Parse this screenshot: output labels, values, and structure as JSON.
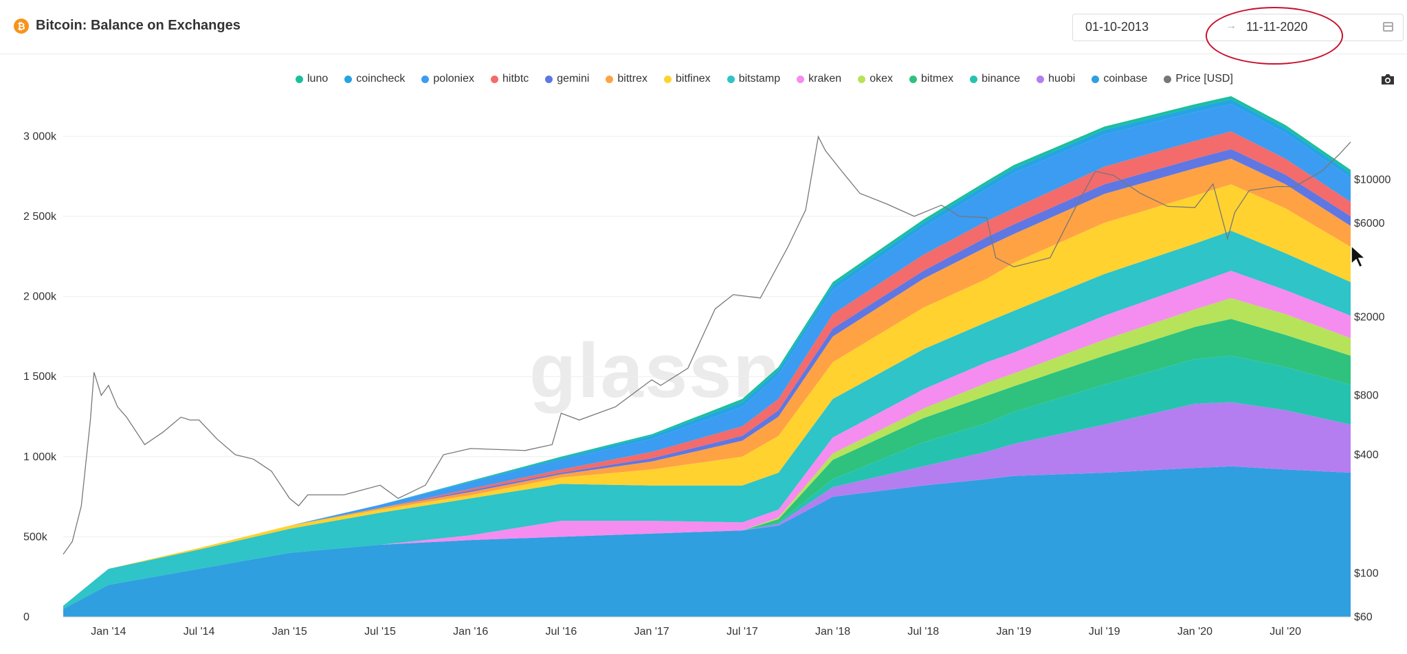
{
  "header": {
    "title": "Bitcoin: Balance on Exchanges",
    "date_start": "01-10-2013",
    "date_arrow": "→",
    "date_end": "11-11-2020"
  },
  "watermark": "glassnode",
  "colors": {
    "luno": "#1bbf9c",
    "coincheck": "#26a3e5",
    "poloniex": "#3b9cf1",
    "hitbtc": "#f36b6b",
    "gemini": "#5f77e2",
    "bittrex": "#ffa244",
    "bitfinex": "#ffd230",
    "bitstamp": "#2ec4c8",
    "kraken": "#f58cf0",
    "okex": "#b6e35a",
    "bitmex": "#2ec27e",
    "binance": "#26c2b0",
    "huobi": "#b47ef0",
    "coinbase": "#2f9fe0",
    "price": "#777777"
  },
  "chart_data": {
    "type": "area",
    "title": "Bitcoin: Balance on Exchanges",
    "stacked": true,
    "legend": [
      {
        "key": "luno",
        "label": "luno"
      },
      {
        "key": "coincheck",
        "label": "coincheck"
      },
      {
        "key": "poloniex",
        "label": "poloniex"
      },
      {
        "key": "hitbtc",
        "label": "hitbtc"
      },
      {
        "key": "gemini",
        "label": "gemini"
      },
      {
        "key": "bittrex",
        "label": "bittrex"
      },
      {
        "key": "bitfinex",
        "label": "bitfinex"
      },
      {
        "key": "bitstamp",
        "label": "bitstamp"
      },
      {
        "key": "kraken",
        "label": "kraken"
      },
      {
        "key": "okex",
        "label": "okex"
      },
      {
        "key": "bitmex",
        "label": "bitmex"
      },
      {
        "key": "binance",
        "label": "binance"
      },
      {
        "key": "huobi",
        "label": "huobi"
      },
      {
        "key": "coinbase",
        "label": "coinbase"
      },
      {
        "key": "price",
        "label": "Price [USD]"
      }
    ],
    "x": [
      2013.75,
      2014.0,
      2014.5,
      2015.0,
      2015.5,
      2016.0,
      2016.5,
      2017.0,
      2017.5,
      2017.7,
      2018.0,
      2018.5,
      2018.85,
      2019.0,
      2019.5,
      2020.0,
      2020.2,
      2020.5,
      2020.86
    ],
    "x_ticks": [
      {
        "value": 2014.0,
        "label": "Jan '14"
      },
      {
        "value": 2014.5,
        "label": "Jul '14"
      },
      {
        "value": 2015.0,
        "label": "Jan '15"
      },
      {
        "value": 2015.5,
        "label": "Jul '15"
      },
      {
        "value": 2016.0,
        "label": "Jan '16"
      },
      {
        "value": 2016.5,
        "label": "Jul '16"
      },
      {
        "value": 2017.0,
        "label": "Jan '17"
      },
      {
        "value": 2017.5,
        "label": "Jul '17"
      },
      {
        "value": 2018.0,
        "label": "Jan '18"
      },
      {
        "value": 2018.5,
        "label": "Jul '18"
      },
      {
        "value": 2019.0,
        "label": "Jan '19"
      },
      {
        "value": 2019.5,
        "label": "Jul '19"
      },
      {
        "value": 2020.0,
        "label": "Jan '20"
      },
      {
        "value": 2020.5,
        "label": "Jul '20"
      }
    ],
    "xlim": [
      2013.75,
      2020.86
    ],
    "ylim": [
      0,
      3100000
    ],
    "y_ticks": [
      {
        "value": 0,
        "label": "0"
      },
      {
        "value": 500000,
        "label": "500k"
      },
      {
        "value": 1000000,
        "label": "1 000k"
      },
      {
        "value": 1500000,
        "label": "1 500k"
      },
      {
        "value": 2000000,
        "label": "2 000k"
      },
      {
        "value": 2500000,
        "label": "2 500k"
      },
      {
        "value": 3000000,
        "label": "3 000k"
      }
    ],
    "y2_scale": "log",
    "y2lim": [
      60,
      20000
    ],
    "y2_ticks": [
      {
        "value": 60,
        "label": "$60"
      },
      {
        "value": 100,
        "label": "$100"
      },
      {
        "value": 400,
        "label": "$400"
      },
      {
        "value": 800,
        "label": "$800"
      },
      {
        "value": 2000,
        "label": "$2000"
      },
      {
        "value": 6000,
        "label": "$6000"
      },
      {
        "value": 10000,
        "label": "$10000"
      }
    ],
    "series": [
      {
        "name": "coinbase",
        "values": [
          50000,
          200000,
          300000,
          400000,
          450000,
          480000,
          500000,
          520000,
          540000,
          570000,
          750000,
          820000,
          860000,
          880000,
          900000,
          930000,
          940000,
          920000,
          900000
        ]
      },
      {
        "name": "huobi",
        "values": [
          0,
          0,
          0,
          0,
          0,
          0,
          0,
          0,
          0,
          10000,
          60000,
          120000,
          170000,
          200000,
          300000,
          400000,
          400000,
          370000,
          300000
        ]
      },
      {
        "name": "binance",
        "values": [
          0,
          0,
          0,
          0,
          0,
          0,
          0,
          0,
          0,
          10000,
          50000,
          150000,
          180000,
          200000,
          250000,
          280000,
          290000,
          270000,
          250000
        ]
      },
      {
        "name": "bitmex",
        "values": [
          0,
          0,
          0,
          0,
          0,
          0,
          0,
          0,
          0,
          20000,
          120000,
          150000,
          170000,
          160000,
          180000,
          200000,
          230000,
          200000,
          180000
        ]
      },
      {
        "name": "okex",
        "values": [
          0,
          0,
          0,
          0,
          0,
          0,
          0,
          0,
          0,
          10000,
          40000,
          60000,
          80000,
          80000,
          100000,
          110000,
          130000,
          130000,
          110000
        ]
      },
      {
        "name": "kraken",
        "values": [
          0,
          0,
          0,
          0,
          0,
          30000,
          100000,
          80000,
          50000,
          50000,
          100000,
          120000,
          130000,
          130000,
          150000,
          160000,
          170000,
          150000,
          140000
        ]
      },
      {
        "name": "bitstamp",
        "values": [
          20000,
          100000,
          120000,
          150000,
          200000,
          230000,
          230000,
          220000,
          230000,
          230000,
          240000,
          250000,
          250000,
          260000,
          260000,
          250000,
          250000,
          230000,
          210000
        ]
      },
      {
        "name": "bitfinex",
        "values": [
          0,
          0,
          10000,
          20000,
          20000,
          20000,
          40000,
          100000,
          180000,
          230000,
          230000,
          260000,
          270000,
          300000,
          320000,
          300000,
          290000,
          280000,
          220000
        ]
      },
      {
        "name": "bittrex",
        "values": [
          0,
          0,
          0,
          0,
          10000,
          20000,
          20000,
          50000,
          100000,
          120000,
          160000,
          180000,
          200000,
          180000,
          180000,
          170000,
          160000,
          150000,
          130000
        ]
      },
      {
        "name": "gemini",
        "values": [
          0,
          0,
          0,
          0,
          0,
          10000,
          10000,
          20000,
          30000,
          40000,
          50000,
          50000,
          60000,
          60000,
          60000,
          60000,
          60000,
          60000,
          60000
        ]
      },
      {
        "name": "hitbtc",
        "values": [
          0,
          0,
          0,
          0,
          0,
          10000,
          20000,
          40000,
          60000,
          70000,
          90000,
          100000,
          100000,
          100000,
          110000,
          110000,
          110000,
          100000,
          90000
        ]
      },
      {
        "name": "poloniex",
        "values": [
          0,
          0,
          0,
          0,
          20000,
          40000,
          60000,
          80000,
          120000,
          150000,
          150000,
          170000,
          200000,
          220000,
          200000,
          180000,
          170000,
          160000,
          150000
        ]
      },
      {
        "name": "coincheck",
        "values": [
          0,
          0,
          0,
          0,
          0,
          5000,
          10000,
          20000,
          30000,
          30000,
          30000,
          30000,
          30000,
          30000,
          30000,
          30000,
          30000,
          30000,
          30000
        ]
      },
      {
        "name": "luno",
        "values": [
          0,
          0,
          0,
          0,
          0,
          5000,
          10000,
          10000,
          20000,
          20000,
          20000,
          20000,
          20000,
          20000,
          20000,
          20000,
          20000,
          20000,
          20000
        ]
      }
    ],
    "price": {
      "name": "Price [USD]",
      "x": [
        2013.75,
        2013.8,
        2013.85,
        2013.9,
        2013.92,
        2013.96,
        2014.0,
        2014.05,
        2014.1,
        2014.2,
        2014.3,
        2014.4,
        2014.45,
        2014.5,
        2014.6,
        2014.7,
        2014.8,
        2014.9,
        2015.0,
        2015.05,
        2015.1,
        2015.3,
        2015.5,
        2015.6,
        2015.75,
        2015.85,
        2016.0,
        2016.3,
        2016.45,
        2016.5,
        2016.6,
        2016.8,
        2017.0,
        2017.05,
        2017.2,
        2017.35,
        2017.45,
        2017.6,
        2017.75,
        2017.85,
        2017.92,
        2017.96,
        2018.05,
        2018.15,
        2018.3,
        2018.45,
        2018.6,
        2018.7,
        2018.85,
        2018.9,
        2019.0,
        2019.2,
        2019.35,
        2019.45,
        2019.55,
        2019.7,
        2019.85,
        2020.0,
        2020.1,
        2020.18,
        2020.22,
        2020.3,
        2020.45,
        2020.55,
        2020.7,
        2020.8,
        2020.86
      ],
      "values": [
        125,
        145,
        220,
        600,
        1050,
        800,
        900,
        700,
        620,
        450,
        520,
        620,
        600,
        600,
        480,
        400,
        380,
        330,
        240,
        220,
        250,
        250,
        280,
        240,
        280,
        400,
        430,
        420,
        450,
        650,
        600,
        700,
        960,
        900,
        1100,
        2200,
        2600,
        2500,
        4500,
        7000,
        16500,
        14000,
        11000,
        8500,
        7500,
        6500,
        7400,
        6500,
        6400,
        4000,
        3600,
        4000,
        7500,
        11000,
        10500,
        8500,
        7300,
        7200,
        9500,
        5000,
        6800,
        8800,
        9200,
        9200,
        11000,
        13500,
        15500
      ]
    }
  }
}
